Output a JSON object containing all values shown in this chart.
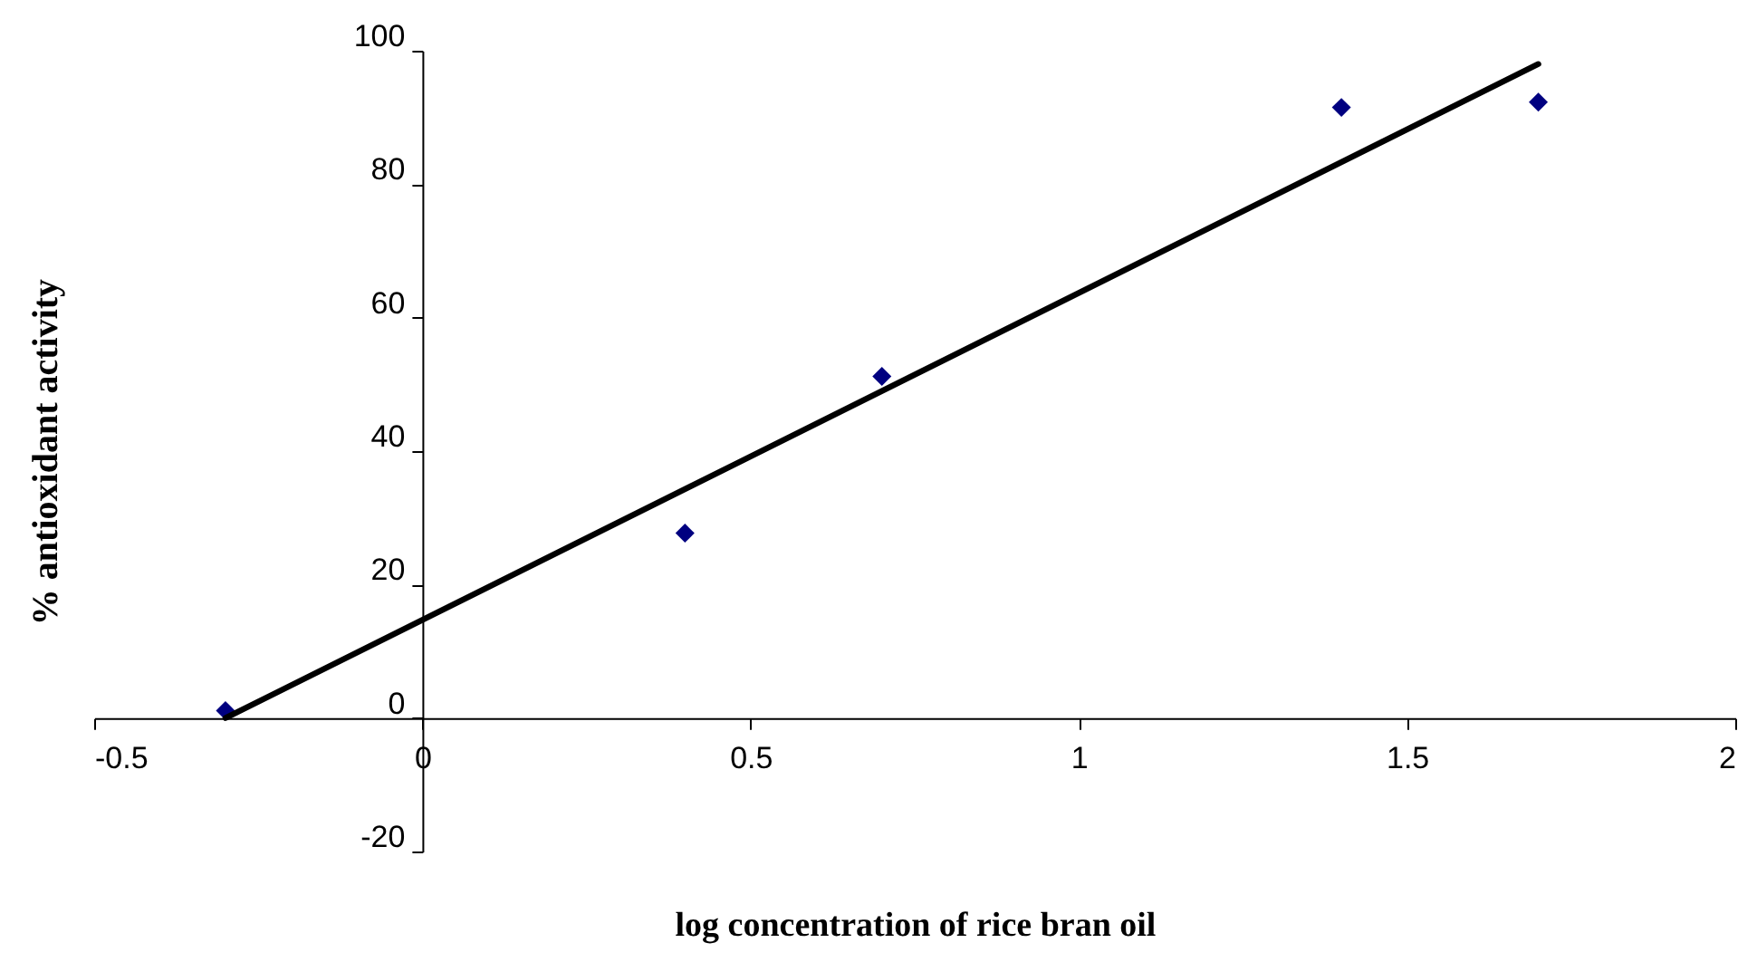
{
  "chart_data": {
    "type": "scatter",
    "xlabel": "log concentration of rice bran oil",
    "ylabel": "% antioxidant activity",
    "xlim": [
      -0.5,
      2
    ],
    "xticks": [
      -0.5,
      0,
      0.5,
      1,
      1.5,
      2
    ],
    "ylim": [
      -20,
      100
    ],
    "yticks": [
      -20,
      0,
      20,
      40,
      60,
      80,
      100
    ],
    "series": [
      {
        "color": "#000080",
        "marker": "diamond",
        "x": [
          -0.3,
          0.4,
          0.7,
          1.4,
          1.7
        ],
        "values": [
          1.1,
          27.7,
          51.2,
          91.5,
          92.3
        ]
      },
      {
        "type": "line",
        "color": "#000000",
        "x": [
          -0.3,
          1.7
        ],
        "values": [
          0,
          98
        ]
      }
    ]
  }
}
